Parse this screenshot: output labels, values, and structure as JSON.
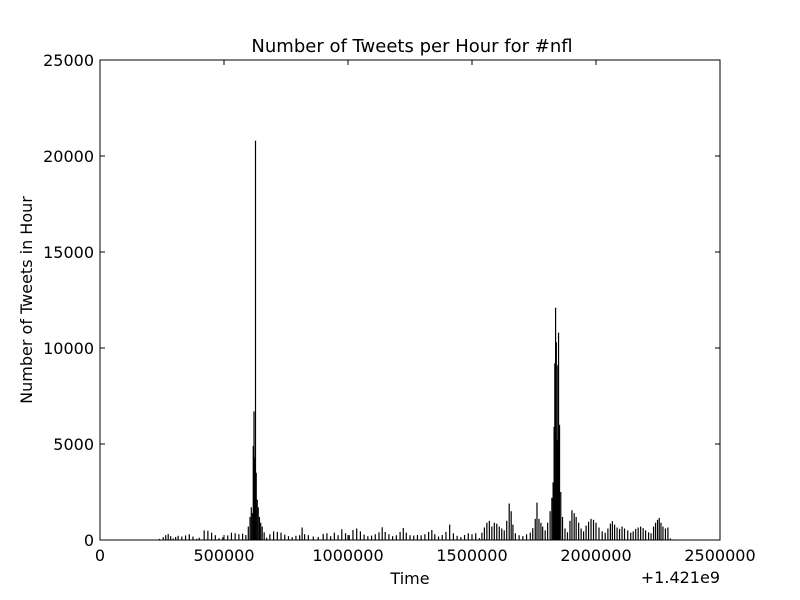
{
  "chart_data": {
    "type": "bar",
    "title": "Number of Tweets per Hour for #nfl",
    "xlabel": "Time",
    "ylabel": "Number of Tweets in Hour",
    "x_offset_label": "+1.421e9",
    "xlim": [
      0,
      2500000
    ],
    "ylim": [
      0,
      25000
    ],
    "x_ticks": [
      {
        "value": 0,
        "label": "0"
      },
      {
        "value": 500000,
        "label": "500000"
      },
      {
        "value": 1000000,
        "label": "1000000"
      },
      {
        "value": 1500000,
        "label": "1500000"
      },
      {
        "value": 2000000,
        "label": "2000000"
      },
      {
        "value": 2500000,
        "label": "2500000"
      }
    ],
    "y_ticks": [
      {
        "value": 0,
        "label": "0"
      },
      {
        "value": 5000,
        "label": "5000"
      },
      {
        "value": 10000,
        "label": "10000"
      },
      {
        "value": 15000,
        "label": "15000"
      },
      {
        "value": 20000,
        "label": "20000"
      },
      {
        "value": 25000,
        "label": "25000"
      }
    ],
    "grid": false,
    "bar_color": "#000000",
    "bar_width": 3600,
    "points": [
      [
        220000,
        20
      ],
      [
        240000,
        60
      ],
      [
        255000,
        150
      ],
      [
        265000,
        250
      ],
      [
        275000,
        310
      ],
      [
        285000,
        200
      ],
      [
        295000,
        80
      ],
      [
        305000,
        160
      ],
      [
        315000,
        220
      ],
      [
        330000,
        180
      ],
      [
        345000,
        240
      ],
      [
        360000,
        300
      ],
      [
        375000,
        180
      ],
      [
        390000,
        60
      ],
      [
        400000,
        120
      ],
      [
        420000,
        500
      ],
      [
        435000,
        480
      ],
      [
        450000,
        380
      ],
      [
        465000,
        250
      ],
      [
        480000,
        90
      ],
      [
        495000,
        140
      ],
      [
        515000,
        240
      ],
      [
        530000,
        380
      ],
      [
        545000,
        350
      ],
      [
        560000,
        300
      ],
      [
        575000,
        330
      ],
      [
        588000,
        260
      ],
      [
        598000,
        700
      ],
      [
        605000,
        1200
      ],
      [
        610000,
        1700
      ],
      [
        614000,
        1400
      ],
      [
        618000,
        4900
      ],
      [
        621000,
        6700
      ],
      [
        624000,
        4300
      ],
      [
        627000,
        20800
      ],
      [
        630000,
        3500
      ],
      [
        634000,
        2100
      ],
      [
        638000,
        1700
      ],
      [
        643000,
        1200
      ],
      [
        648000,
        900
      ],
      [
        654000,
        700
      ],
      [
        662000,
        400
      ],
      [
        672000,
        120
      ],
      [
        685000,
        300
      ],
      [
        700000,
        450
      ],
      [
        715000,
        420
      ],
      [
        730000,
        380
      ],
      [
        745000,
        280
      ],
      [
        760000,
        200
      ],
      [
        775000,
        150
      ],
      [
        790000,
        220
      ],
      [
        805000,
        250
      ],
      [
        815000,
        650
      ],
      [
        825000,
        300
      ],
      [
        840000,
        250
      ],
      [
        860000,
        180
      ],
      [
        880000,
        160
      ],
      [
        900000,
        320
      ],
      [
        915000,
        350
      ],
      [
        930000,
        200
      ],
      [
        945000,
        380
      ],
      [
        960000,
        250
      ],
      [
        975000,
        560
      ],
      [
        990000,
        350
      ],
      [
        1005000,
        250
      ],
      [
        1020000,
        520
      ],
      [
        1035000,
        600
      ],
      [
        1050000,
        450
      ],
      [
        1065000,
        280
      ],
      [
        1080000,
        200
      ],
      [
        1095000,
        230
      ],
      [
        1110000,
        300
      ],
      [
        1125000,
        400
      ],
      [
        1138000,
        660
      ],
      [
        1150000,
        420
      ],
      [
        1165000,
        300
      ],
      [
        1180000,
        200
      ],
      [
        1195000,
        250
      ],
      [
        1210000,
        420
      ],
      [
        1223000,
        620
      ],
      [
        1235000,
        380
      ],
      [
        1250000,
        250
      ],
      [
        1265000,
        230
      ],
      [
        1280000,
        260
      ],
      [
        1295000,
        240
      ],
      [
        1310000,
        300
      ],
      [
        1325000,
        420
      ],
      [
        1338000,
        520
      ],
      [
        1350000,
        300
      ],
      [
        1365000,
        180
      ],
      [
        1380000,
        260
      ],
      [
        1395000,
        420
      ],
      [
        1410000,
        800
      ],
      [
        1425000,
        350
      ],
      [
        1440000,
        220
      ],
      [
        1455000,
        150
      ],
      [
        1470000,
        260
      ],
      [
        1485000,
        350
      ],
      [
        1500000,
        300
      ],
      [
        1515000,
        350
      ],
      [
        1530000,
        100
      ],
      [
        1540000,
        380
      ],
      [
        1550000,
        650
      ],
      [
        1560000,
        900
      ],
      [
        1570000,
        1000
      ],
      [
        1580000,
        700
      ],
      [
        1590000,
        900
      ],
      [
        1600000,
        850
      ],
      [
        1610000,
        700
      ],
      [
        1620000,
        600
      ],
      [
        1630000,
        500
      ],
      [
        1640000,
        1000
      ],
      [
        1650000,
        1900
      ],
      [
        1658000,
        1500
      ],
      [
        1665000,
        800
      ],
      [
        1675000,
        350
      ],
      [
        1690000,
        250
      ],
      [
        1705000,
        200
      ],
      [
        1720000,
        300
      ],
      [
        1735000,
        380
      ],
      [
        1745000,
        620
      ],
      [
        1755000,
        1100
      ],
      [
        1762000,
        1950
      ],
      [
        1770000,
        1100
      ],
      [
        1778000,
        900
      ],
      [
        1785000,
        700
      ],
      [
        1795000,
        500
      ],
      [
        1805000,
        900
      ],
      [
        1815000,
        1500
      ],
      [
        1822000,
        2200
      ],
      [
        1827000,
        3000
      ],
      [
        1831000,
        5900
      ],
      [
        1834000,
        9200
      ],
      [
        1837000,
        12100
      ],
      [
        1840000,
        10300
      ],
      [
        1843000,
        5200
      ],
      [
        1846000,
        9100
      ],
      [
        1849000,
        10800
      ],
      [
        1853000,
        6000
      ],
      [
        1858000,
        2500
      ],
      [
        1865000,
        1200
      ],
      [
        1875000,
        600
      ],
      [
        1885000,
        400
      ],
      [
        1895000,
        1000
      ],
      [
        1903000,
        1550
      ],
      [
        1912000,
        1400
      ],
      [
        1920000,
        1200
      ],
      [
        1930000,
        900
      ],
      [
        1940000,
        600
      ],
      [
        1950000,
        450
      ],
      [
        1960000,
        750
      ],
      [
        1970000,
        950
      ],
      [
        1980000,
        1100
      ],
      [
        1990000,
        1050
      ],
      [
        2000000,
        900
      ],
      [
        2012000,
        650
      ],
      [
        2025000,
        450
      ],
      [
        2037000,
        380
      ],
      [
        2048000,
        600
      ],
      [
        2058000,
        850
      ],
      [
        2066000,
        980
      ],
      [
        2075000,
        800
      ],
      [
        2085000,
        650
      ],
      [
        2095000,
        580
      ],
      [
        2105000,
        700
      ],
      [
        2115000,
        600
      ],
      [
        2128000,
        500
      ],
      [
        2140000,
        380
      ],
      [
        2150000,
        450
      ],
      [
        2160000,
        580
      ],
      [
        2170000,
        650
      ],
      [
        2180000,
        700
      ],
      [
        2190000,
        620
      ],
      [
        2200000,
        500
      ],
      [
        2212000,
        400
      ],
      [
        2222000,
        350
      ],
      [
        2232000,
        700
      ],
      [
        2240000,
        900
      ],
      [
        2248000,
        1050
      ],
      [
        2255000,
        1150
      ],
      [
        2262000,
        900
      ],
      [
        2270000,
        700
      ],
      [
        2280000,
        600
      ],
      [
        2290000,
        650
      ],
      [
        2300000,
        80
      ],
      [
        2310000,
        30
      ]
    ]
  }
}
